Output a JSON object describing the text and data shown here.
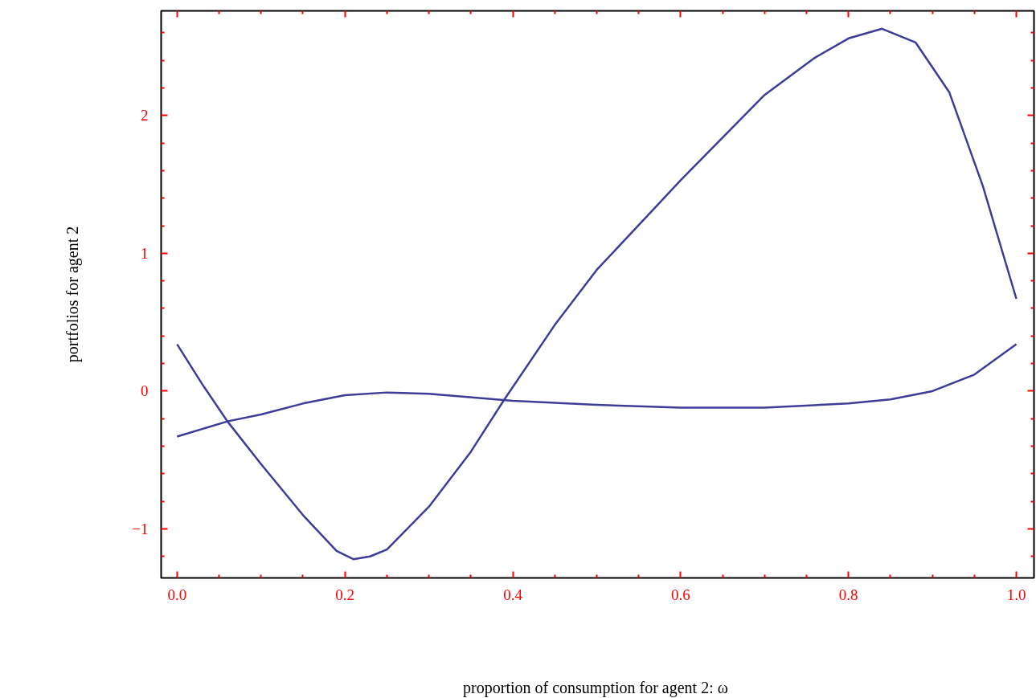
{
  "chart_data": {
    "type": "line",
    "xlabel": "proportion of consumption for agent 2:  ω",
    "ylabel": "portfolios for agent 2",
    "series": [
      {
        "color": "#3d3d99",
        "x": [
          0,
          0.03,
          0.06,
          0.1,
          0.15,
          0.19,
          0.21,
          0.23,
          0.25,
          0.3,
          0.35,
          0.39,
          0.45,
          0.5,
          0.6,
          0.7,
          0.76,
          0.8,
          0.84,
          0.88,
          0.92,
          0.96,
          1.0
        ],
        "values": [
          0.34,
          0.05,
          -0.22,
          -0.53,
          -0.9,
          -1.16,
          -1.22,
          -1.2,
          -1.15,
          -0.84,
          -0.44,
          -0.06,
          0.48,
          0.88,
          1.53,
          2.15,
          2.42,
          2.56,
          2.63,
          2.53,
          2.17,
          1.49,
          0.67
        ]
      },
      {
        "color": "#3d3d99",
        "x": [
          0,
          0.06,
          0.1,
          0.15,
          0.2,
          0.25,
          0.3,
          0.4,
          0.5,
          0.6,
          0.7,
          0.8,
          0.85,
          0.9,
          0.95,
          1.0
        ],
        "values": [
          -0.33,
          -0.22,
          -0.17,
          -0.09,
          -0.03,
          -0.01,
          -0.02,
          -0.07,
          -0.1,
          -0.12,
          -0.12,
          -0.09,
          -0.06,
          0.0,
          0.12,
          0.34
        ]
      }
    ],
    "xlim": [
      -0.019,
      1.021
    ],
    "ylim": [
      -1.356,
      2.76
    ],
    "xticks": [
      {
        "value": 0,
        "label": "0.0"
      },
      0.2,
      0.4,
      0.6,
      0.8,
      {
        "value": 1,
        "label": "1.0"
      },
      {
        "value": 0.05,
        "label": null
      },
      {
        "value": 0.1,
        "label": null
      },
      {
        "value": 0.15,
        "label": null
      },
      {
        "value": 0.25,
        "label": null
      },
      {
        "value": 0.3,
        "label": null
      },
      {
        "value": 0.35,
        "label": null
      },
      {
        "value": 0.45,
        "label": null
      },
      {
        "value": 0.5,
        "label": null
      },
      {
        "value": 0.55,
        "label": null
      },
      {
        "value": 0.65,
        "label": null
      },
      {
        "value": 0.7,
        "label": null
      },
      {
        "value": 0.75,
        "label": null
      },
      {
        "value": 0.85,
        "label": null
      },
      {
        "value": 0.9,
        "label": null
      },
      {
        "value": 0.95,
        "label": null
      }
    ],
    "yticks": [
      {
        "value": -1,
        "label": "−1"
      },
      0,
      1,
      2,
      {
        "value": -1.2,
        "label": null
      },
      {
        "value": -0.8,
        "label": null
      },
      {
        "value": -0.6,
        "label": null
      },
      {
        "value": -0.4,
        "label": null
      },
      {
        "value": -0.2,
        "label": null
      },
      {
        "value": 0.2,
        "label": null
      },
      {
        "value": 0.4,
        "label": null
      },
      {
        "value": 0.6,
        "label": null
      },
      {
        "value": 0.8,
        "label": null
      },
      {
        "value": 1.2,
        "label": null
      },
      {
        "value": 1.4,
        "label": null
      },
      {
        "value": 1.6,
        "label": null
      },
      {
        "value": 1.8,
        "label": null
      },
      {
        "value": 2.2,
        "label": null
      },
      {
        "value": 2.4,
        "label": null
      },
      {
        "value": 2.6,
        "label": null
      }
    ],
    "grid": false,
    "marker": "none",
    "line_style": "solid"
  }
}
